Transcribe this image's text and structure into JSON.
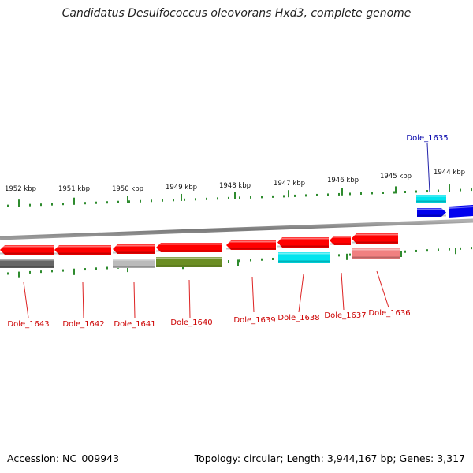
{
  "title": "Candidatus Desulfococcus oleovorans Hxd3, complete genome",
  "footer": {
    "accession": "Accession: NC_009943",
    "summary": "Topology: circular; Length: 3,944,167 bp; Genes: 3,317"
  },
  "colors": {
    "backbone": "#8a8a8a",
    "tick": "#2e8b2e",
    "label_red": "#cc0000",
    "label_blue": "#0000aa",
    "leader_red": "#dd2222",
    "leader_blue": "#2222aa"
  },
  "kbp_labels": [
    "1952 kbp",
    "1951 kbp",
    "1950 kbp",
    "1949 kbp",
    "1948 kbp",
    "1947 kbp",
    "1946 kbp",
    "1945 kbp",
    "1944 kbp"
  ],
  "genes": [
    {
      "label": "Dole_1643",
      "color": "#ff0000",
      "track": 1,
      "dir": -1,
      "label_color": "red"
    },
    {
      "label": "",
      "color": "#666666",
      "track": 2,
      "dir": 0,
      "label_color": ""
    },
    {
      "label": "Dole_1642",
      "color": "#ff0000",
      "track": 1,
      "dir": -1,
      "label_color": "red"
    },
    {
      "label": "Dole_1641",
      "color": "#ff0000",
      "track": 1,
      "dir": -1,
      "label_color": "red"
    },
    {
      "label": "",
      "color": "#bbbbbb",
      "track": 2,
      "dir": 0,
      "label_color": ""
    },
    {
      "label": "Dole_1640",
      "color": "#ff0000",
      "track": 1,
      "dir": -1,
      "label_color": "red"
    },
    {
      "label": "",
      "color": "#6b8e23",
      "track": 2,
      "dir": 0,
      "label_color": ""
    },
    {
      "label": "Dole_1639",
      "color": "#ff0000",
      "track": 1,
      "dir": -1,
      "label_color": "red"
    },
    {
      "label": "Dole_1638",
      "color": "#ff0000",
      "track": 1,
      "dir": -1,
      "label_color": "red"
    },
    {
      "label": "",
      "color": "#00e5ee",
      "track": 2,
      "dir": 0,
      "label_color": ""
    },
    {
      "label": "Dole_1637",
      "color": "#ff0000",
      "track": 1,
      "dir": -1,
      "label_color": "red"
    },
    {
      "label": "Dole_1636",
      "color": "#ff0000",
      "track": 1,
      "dir": -1,
      "label_color": "red"
    },
    {
      "label": "",
      "color": "#f08080",
      "track": 2,
      "dir": 0,
      "label_color": ""
    },
    {
      "label": "Dole_1635",
      "color": "#0000ee",
      "track": -1,
      "dir": 1,
      "label_color": "blue"
    },
    {
      "label": "",
      "color": "#00e5ee",
      "track": -2,
      "dir": 0,
      "label_color": ""
    }
  ]
}
